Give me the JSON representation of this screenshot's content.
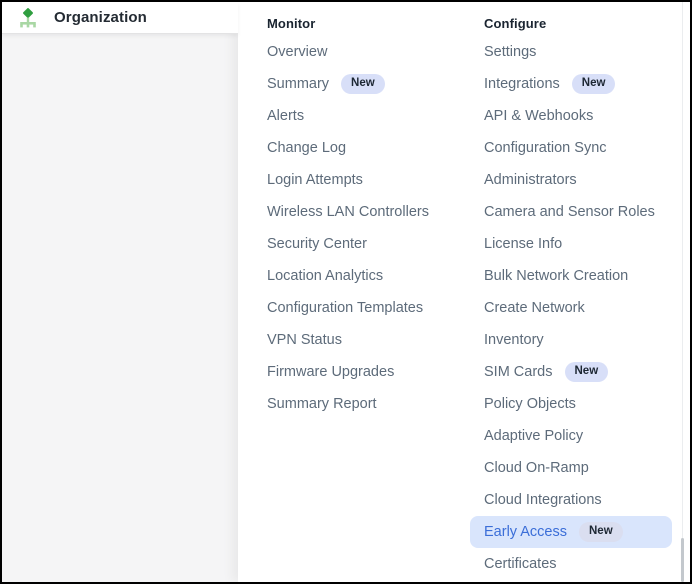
{
  "sidebar": {
    "title": "Organization",
    "icon": "org-tree-icon"
  },
  "menu": {
    "columns": [
      {
        "header": "Monitor",
        "items": [
          {
            "label": "Overview"
          },
          {
            "label": "Summary",
            "badge": "New"
          },
          {
            "label": "Alerts"
          },
          {
            "label": "Change Log"
          },
          {
            "label": "Login Attempts"
          },
          {
            "label": "Wireless LAN Controllers"
          },
          {
            "label": "Security Center"
          },
          {
            "label": "Location Analytics"
          },
          {
            "label": "Configuration Templates"
          },
          {
            "label": "VPN Status"
          },
          {
            "label": "Firmware Upgrades"
          },
          {
            "label": "Summary Report"
          }
        ]
      },
      {
        "header": "Configure",
        "items": [
          {
            "label": "Settings"
          },
          {
            "label": "Integrations",
            "badge": "New"
          },
          {
            "label": "API & Webhooks"
          },
          {
            "label": "Configuration Sync"
          },
          {
            "label": "Administrators"
          },
          {
            "label": "Camera and Sensor Roles"
          },
          {
            "label": "License Info"
          },
          {
            "label": "Bulk Network Creation"
          },
          {
            "label": "Create Network"
          },
          {
            "label": "Inventory"
          },
          {
            "label": "SIM Cards",
            "badge": "New"
          },
          {
            "label": "Policy Objects"
          },
          {
            "label": "Adaptive Policy"
          },
          {
            "label": "Cloud On-Ramp"
          },
          {
            "label": "Cloud Integrations"
          },
          {
            "label": "Early Access",
            "badge": "New",
            "active": true
          },
          {
            "label": "Certificates"
          }
        ]
      }
    ]
  },
  "colors": {
    "accent_green_dark": "#2f9e3f",
    "accent_green_light": "#a9d7a4",
    "badge_bg": "#d8dff8",
    "badge_text": "#1d2733",
    "active_bg": "#d9e5fc",
    "active_text": "#3b6ed8",
    "item_text": "#5d6b7a",
    "header_text": "#1a2430",
    "sidebar_bg": "#f5f5f6"
  }
}
